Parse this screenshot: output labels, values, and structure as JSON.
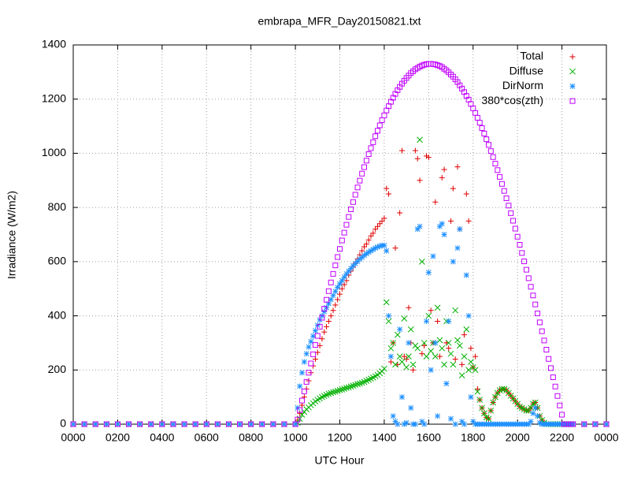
{
  "chart_data": {
    "type": "scatter",
    "title": "embrapa_MFR_Day20150821.txt",
    "x_label": "UTC Hour",
    "y_label": "Irradiance (W/m2)",
    "xlim": [
      0,
      24
    ],
    "ylim": [
      0,
      1400
    ],
    "xticks": [
      {
        "value": 0,
        "label": "0000"
      },
      {
        "value": 2,
        "label": "0200"
      },
      {
        "value": 4,
        "label": "0400"
      },
      {
        "value": 6,
        "label": "0600"
      },
      {
        "value": 8,
        "label": "0800"
      },
      {
        "value": 10,
        "label": "1000"
      },
      {
        "value": 12,
        "label": "1200"
      },
      {
        "value": 14,
        "label": "1400"
      },
      {
        "value": 16,
        "label": "1600"
      },
      {
        "value": 18,
        "label": "1800"
      },
      {
        "value": 20,
        "label": "2000"
      },
      {
        "value": 22,
        "label": "2200"
      },
      {
        "value": 24,
        "label": "0000"
      }
    ],
    "yticks": [
      0,
      200,
      400,
      600,
      800,
      1000,
      1200,
      1400
    ],
    "grid": true,
    "legend": "upper right",
    "x": [
      0,
      0.5,
      1,
      1.5,
      2,
      2.5,
      3,
      3.5,
      4,
      4.5,
      5,
      5.5,
      6,
      6.5,
      7,
      7.5,
      8,
      8.5,
      9,
      9.5,
      10.0,
      10.1,
      10.2,
      10.3,
      10.4,
      10.5,
      10.6,
      10.7,
      10.8,
      10.9,
      11.0,
      11.1,
      11.2,
      11.3,
      11.4,
      11.5,
      11.6,
      11.7,
      11.8,
      11.9,
      12.0,
      12.1,
      12.2,
      12.3,
      12.4,
      12.5,
      12.6,
      12.7,
      12.8,
      12.9,
      13.0,
      13.1,
      13.2,
      13.3,
      13.4,
      13.5,
      13.6,
      13.7,
      13.8,
      13.9,
      14.0,
      14.1,
      14.2,
      14.3,
      14.4,
      14.5,
      14.6,
      14.7,
      14.8,
      14.9,
      15.0,
      15.1,
      15.2,
      15.3,
      15.4,
      15.5,
      15.6,
      15.7,
      15.8,
      15.9,
      16.0,
      16.1,
      16.2,
      16.3,
      16.4,
      16.5,
      16.6,
      16.7,
      16.8,
      16.9,
      17.0,
      17.1,
      17.2,
      17.3,
      17.4,
      17.5,
      17.6,
      17.7,
      17.8,
      17.9,
      18.0,
      18.1,
      18.2,
      18.3,
      18.4,
      18.5,
      18.6,
      18.7,
      18.8,
      18.9,
      19.0,
      19.1,
      19.2,
      19.3,
      19.4,
      19.5,
      19.6,
      19.7,
      19.8,
      19.9,
      20.0,
      20.1,
      20.2,
      20.3,
      20.4,
      20.5,
      20.6,
      20.7,
      20.8,
      20.9,
      21.0,
      21.1,
      21.2,
      21.3,
      21.4,
      21.5,
      21.6,
      21.7,
      21.8,
      21.9,
      22.0,
      22.1,
      22.2,
      22.3,
      22.4,
      22.5,
      23,
      23.5,
      24
    ],
    "series": [
      {
        "name": "Total",
        "color": "#e00000",
        "marker": "plus",
        "values": [
          0,
          0,
          0,
          0,
          0,
          0,
          0,
          0,
          0,
          0,
          0,
          0,
          0,
          0,
          0,
          0,
          0,
          0,
          0,
          0,
          0,
          15,
          40,
          70,
          100,
          130,
          160,
          190,
          215,
          240,
          265,
          290,
          315,
          340,
          360,
          380,
          400,
          420,
          440,
          460,
          480,
          500,
          515,
          530,
          550,
          565,
          580,
          595,
          610,
          625,
          640,
          655,
          665,
          680,
          695,
          705,
          720,
          730,
          740,
          750,
          760,
          870,
          850,
          230,
          300,
          650,
          220,
          780,
          1010,
          250,
          240,
          430,
          300,
          200,
          1010,
          980,
          900,
          260,
          290,
          990,
          985,
          420,
          300,
          820,
          380,
          250,
          910,
          940,
          300,
          280,
          750,
          870,
          240,
          950,
          720,
          220,
          330,
          850,
          750,
          280,
          210,
          250,
          130,
          90,
          60,
          40,
          25,
          20,
          50,
          80,
          100,
          115,
          125,
          130,
          130,
          125,
          115,
          105,
          95,
          85,
          75,
          65,
          60,
          55,
          50,
          50,
          60,
          75,
          80,
          60,
          30,
          15,
          5,
          0,
          0,
          0,
          0,
          0,
          0,
          0,
          0,
          0,
          0,
          0,
          0,
          0,
          0,
          0,
          0
        ]
      },
      {
        "name": "Diffuse",
        "color": "#00b000",
        "marker": "cross",
        "values": [
          0,
          0,
          0,
          0,
          0,
          0,
          0,
          0,
          0,
          0,
          0,
          0,
          0,
          0,
          0,
          0,
          0,
          0,
          0,
          0,
          0,
          5,
          20,
          35,
          45,
          55,
          62,
          70,
          77,
          84,
          90,
          95,
          100,
          104,
          108,
          112,
          115,
          118,
          120,
          123,
          126,
          128,
          131,
          134,
          136,
          139,
          142,
          145,
          148,
          150,
          153,
          156,
          160,
          164,
          168,
          172,
          177,
          182,
          188,
          195,
          205,
          450,
          380,
          280,
          300,
          220,
          330,
          250,
          230,
          390,
          210,
          250,
          350,
          220,
          290,
          280,
          1050,
          600,
          300,
          250,
          400,
          270,
          300,
          250,
          430,
          310,
          280,
          220,
          380,
          300,
          260,
          220,
          420,
          310,
          290,
          180,
          250,
          350,
          200,
          230,
          210,
          200,
          120,
          90,
          60,
          40,
          25,
          20,
          50,
          80,
          100,
          115,
          125,
          130,
          130,
          125,
          115,
          105,
          95,
          85,
          75,
          65,
          60,
          55,
          50,
          50,
          60,
          75,
          80,
          60,
          30,
          15,
          5,
          0,
          0,
          0,
          0,
          0,
          0,
          0,
          0,
          0,
          0,
          0,
          0,
          0,
          0,
          0,
          0
        ]
      },
      {
        "name": "DirNorm",
        "color": "#1e90ff",
        "marker": "star",
        "values": [
          0,
          0,
          0,
          0,
          0,
          0,
          0,
          0,
          0,
          0,
          0,
          0,
          0,
          0,
          0,
          0,
          0,
          0,
          0,
          0,
          0,
          60,
          140,
          190,
          230,
          260,
          285,
          305,
          325,
          345,
          365,
          385,
          400,
          415,
          430,
          445,
          460,
          475,
          490,
          505,
          518,
          530,
          543,
          555,
          565,
          575,
          585,
          593,
          601,
          609,
          616,
          623,
          629,
          635,
          640,
          645,
          650,
          654,
          657,
          660,
          660,
          640,
          400,
          250,
          30,
          10,
          0,
          350,
          100,
          0,
          5,
          300,
          60,
          0,
          0,
          720,
          730,
          10,
          0,
          380,
          560,
          200,
          620,
          300,
          30,
          730,
          740,
          700,
          150,
          380,
          20,
          600,
          0,
          650,
          720,
          10,
          0,
          550,
          400,
          100,
          10,
          0,
          0,
          0,
          0,
          0,
          0,
          0,
          0,
          0,
          0,
          0,
          0,
          0,
          0,
          0,
          0,
          0,
          0,
          0,
          0,
          0,
          0,
          0,
          0,
          0,
          10,
          40,
          60,
          30,
          5,
          0,
          0,
          0,
          0,
          0,
          0,
          0,
          0,
          0,
          0,
          0,
          0,
          0,
          0,
          0,
          0,
          0,
          0
        ]
      },
      {
        "name": "380*cos(zth)",
        "color": "#c000ff",
        "marker": "square",
        "values": [
          0,
          0,
          0,
          0,
          0,
          0,
          0,
          0,
          0,
          0,
          0,
          0,
          0,
          0,
          0,
          0,
          0,
          0,
          0,
          0,
          0,
          17,
          52,
          87,
          121,
          156,
          190,
          224,
          258,
          292,
          326,
          360,
          393,
          426,
          459,
          491,
          523,
          555,
          586,
          617,
          647,
          678,
          707,
          736,
          765,
          793,
          820,
          847,
          874,
          899,
          925,
          949,
          973,
          997,
          1019,
          1041,
          1063,
          1083,
          1103,
          1122,
          1140,
          1158,
          1174,
          1190,
          1205,
          1219,
          1233,
          1245,
          1257,
          1268,
          1278,
          1287,
          1296,
          1303,
          1310,
          1315,
          1320,
          1324,
          1327,
          1329,
          1330,
          1330,
          1329,
          1328,
          1325,
          1322,
          1318,
          1312,
          1306,
          1299,
          1291,
          1283,
          1273,
          1263,
          1251,
          1239,
          1226,
          1212,
          1198,
          1182,
          1166,
          1149,
          1131,
          1113,
          1093,
          1073,
          1052,
          1031,
          1008,
          986,
          962,
          938,
          913,
          887,
          861,
          834,
          807,
          779,
          751,
          722,
          692,
          662,
          632,
          601,
          570,
          539,
          507,
          475,
          442,
          409,
          376,
          343,
          309,
          275,
          241,
          207,
          173,
          139,
          104,
          69,
          35,
          0,
          0,
          0,
          0,
          0,
          0,
          0,
          0
        ]
      }
    ]
  }
}
